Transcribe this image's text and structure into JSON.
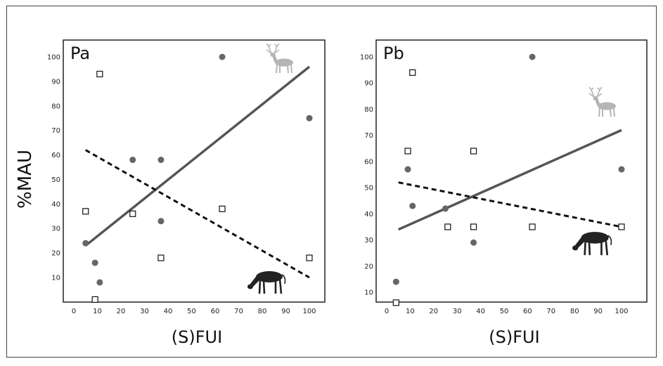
{
  "ylabel": "%MAU",
  "colors": {
    "solid_line": "#555555",
    "dot_fill": "#666666",
    "dashed_line": "#111111",
    "deer": "#b5b5b5",
    "zebra": "#222222"
  },
  "icons": {
    "deer": "deer-icon",
    "zebra": "zebra-icon"
  },
  "chart_data": [
    {
      "type": "scatter",
      "title": "Pa",
      "xlabel": "(S)FUI",
      "ylabel": "%MAU",
      "xlim": [
        0,
        100
      ],
      "ylim": [
        0,
        100
      ],
      "xticks": [
        0,
        10,
        20,
        30,
        40,
        50,
        60,
        70,
        80,
        90,
        100
      ],
      "yticks": [
        10,
        20,
        30,
        40,
        50,
        60,
        70,
        80,
        90,
        100
      ],
      "series": [
        {
          "marker": "filled-circle",
          "points": [
            [
              5,
              24
            ],
            [
              9,
              16
            ],
            [
              11,
              8
            ],
            [
              25,
              58
            ],
            [
              37,
              58
            ],
            [
              37,
              33
            ],
            [
              63,
              100
            ],
            [
              100,
              75
            ]
          ]
        },
        {
          "marker": "open-square",
          "points": [
            [
              5,
              37
            ],
            [
              9,
              1
            ],
            [
              11,
              93
            ],
            [
              25,
              36
            ],
            [
              37,
              18
            ],
            [
              63,
              38
            ],
            [
              100,
              18
            ]
          ]
        }
      ],
      "trendlines": [
        {
          "style": "solid",
          "from": [
            5,
            23
          ],
          "to": [
            100,
            96
          ]
        },
        {
          "style": "dashed",
          "from": [
            5,
            62
          ],
          "to": [
            100,
            10
          ]
        }
      ]
    },
    {
      "type": "scatter",
      "title": "Pb",
      "xlabel": "(S)FUI",
      "ylabel": "",
      "xlim": [
        0,
        100
      ],
      "ylim": [
        5,
        100
      ],
      "xticks": [
        0,
        10,
        20,
        30,
        40,
        50,
        60,
        70,
        80,
        90,
        100
      ],
      "yticks": [
        10,
        20,
        30,
        40,
        50,
        60,
        70,
        80,
        90,
        100
      ],
      "series": [
        {
          "marker": "filled-circle",
          "points": [
            [
              4,
              14
            ],
            [
              9,
              57
            ],
            [
              11,
              43
            ],
            [
              25,
              42
            ],
            [
              37,
              29
            ],
            [
              62,
              100
            ],
            [
              100,
              57
            ]
          ]
        },
        {
          "marker": "open-square",
          "points": [
            [
              4,
              6
            ],
            [
              9,
              64
            ],
            [
              11,
              94
            ],
            [
              26,
              35
            ],
            [
              37,
              64
            ],
            [
              37,
              35
            ],
            [
              62,
              35
            ],
            [
              100,
              35
            ]
          ]
        }
      ],
      "trendlines": [
        {
          "style": "solid",
          "from": [
            5,
            34
          ],
          "to": [
            100,
            72
          ]
        },
        {
          "style": "dashed",
          "from": [
            5,
            52
          ],
          "to": [
            100,
            35
          ]
        }
      ]
    }
  ]
}
